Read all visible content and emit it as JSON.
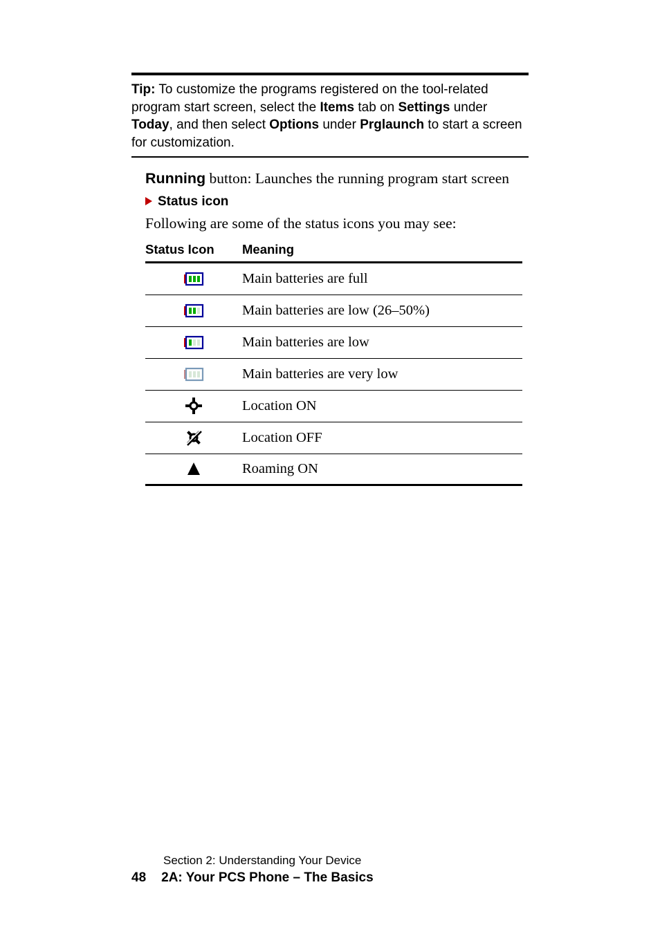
{
  "tip": {
    "label": "Tip:",
    "text_parts": [
      " To customize the programs registered on the tool-related program start screen, select the ",
      " tab on ",
      " under ",
      ", and then select ",
      " under ",
      " to start a screen for customization."
    ],
    "bold_words": [
      "Items",
      "Settings",
      "Today",
      "Options",
      "Prglaunch"
    ]
  },
  "running": {
    "bold": "Running",
    "rest": " button: Launches the running program start screen"
  },
  "status_heading": "Status icon",
  "following_text": "Following are some of the status icons you may see:",
  "table": {
    "headers": {
      "icon": "Status Icon",
      "meaning": "Meaning"
    },
    "rows": [
      {
        "icon": "battery-full",
        "meaning": "Main batteries are full"
      },
      {
        "icon": "battery-med",
        "meaning": "Main batteries are low (26–50%)"
      },
      {
        "icon": "battery-low",
        "meaning": "Main batteries are low"
      },
      {
        "icon": "battery-vlow",
        "meaning": "Main batteries are very low"
      },
      {
        "icon": "location-on",
        "meaning": "Location ON"
      },
      {
        "icon": "location-off",
        "meaning": "Location OFF"
      },
      {
        "icon": "roaming-on",
        "meaning": "Roaming ON"
      }
    ]
  },
  "icon_styles": {
    "battery-full": {
      "bars": 3,
      "outline": "#000099",
      "nub": "#cc0000",
      "bar_color": "#00aa00"
    },
    "battery-med": {
      "bars": 2,
      "outline": "#000099",
      "nub": "#cc0000",
      "bar_color": "#00aa00"
    },
    "battery-low": {
      "bars": 1,
      "outline": "#000099",
      "nub": "#cc0000",
      "bar_color": "#00aa00"
    },
    "battery-vlow": {
      "bars": 0,
      "outline": "#7a9ab8",
      "nub": "#c98a8a",
      "bar_color": "#00aa00"
    },
    "location_fill": "#000000",
    "roaming_fill": "#000000"
  },
  "footer": {
    "section": "Section 2: Understanding Your Device",
    "page_num": "48",
    "page_title": "2A: Your PCS Phone – The Basics"
  }
}
